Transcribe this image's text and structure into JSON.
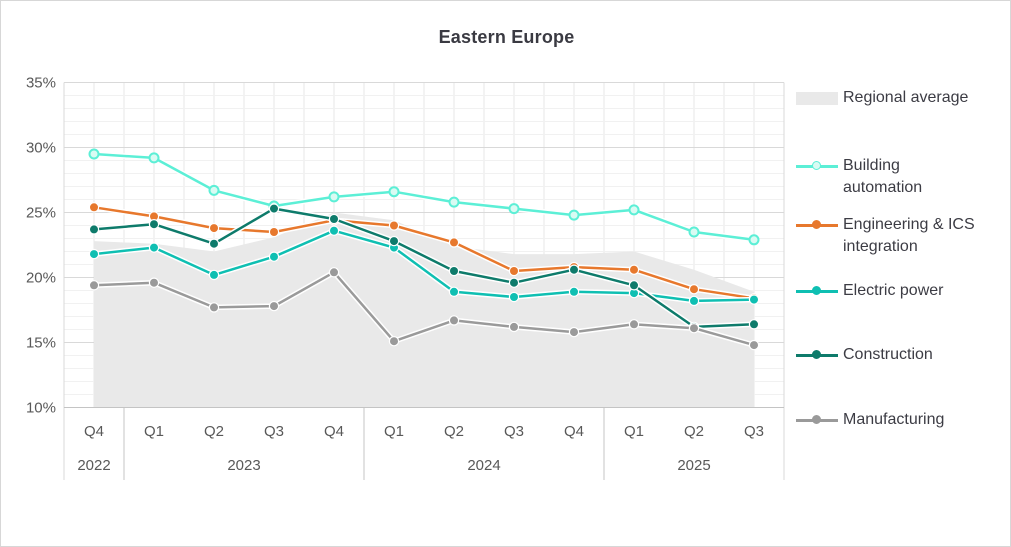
{
  "title": "Eastern Europe",
  "chart_data": {
    "type": "line",
    "title": "Eastern Europe",
    "x_categories": [
      "Q4",
      "Q1",
      "Q2",
      "Q3",
      "Q4",
      "Q1",
      "Q2",
      "Q3",
      "Q4",
      "Q1",
      "Q2",
      "Q3"
    ],
    "year_groups": [
      {
        "label": "2022",
        "quarters": 1
      },
      {
        "label": "2023",
        "quarters": 4
      },
      {
        "label": "2024",
        "quarters": 4
      },
      {
        "label": "2025",
        "quarters": 3
      }
    ],
    "y_axis": {
      "unit": "%",
      "min": 10,
      "max": 35,
      "major_step": 5,
      "minor_step": 1,
      "tick_labels": [
        "35%",
        "30%",
        "25%",
        "20%",
        "15%",
        "10%"
      ]
    },
    "grid": {
      "horizontal": true,
      "vertical": true
    },
    "area_series": {
      "name": "Regional average",
      "color": "#e9e9e9",
      "values": [
        22.8,
        22.6,
        22.0,
        23.1,
        25.0,
        24.4,
        22.4,
        21.8,
        21.8,
        22.0,
        20.6,
        18.9
      ]
    },
    "series": [
      {
        "name": "Building automation",
        "color": "#5cefd6",
        "marker": "open-circle",
        "values": [
          29.5,
          29.2,
          26.7,
          25.5,
          26.2,
          26.6,
          25.8,
          25.3,
          24.8,
          25.2,
          23.5,
          22.9
        ]
      },
      {
        "name": "Engineering & ICS integration",
        "color": "#e7782d",
        "marker": "dot",
        "values": [
          25.4,
          24.7,
          23.8,
          23.5,
          24.4,
          24.0,
          22.7,
          20.5,
          20.8,
          20.6,
          19.1,
          18.4
        ]
      },
      {
        "name": "Electric power",
        "color": "#0fbfb2",
        "marker": "dot",
        "values": [
          21.8,
          22.3,
          20.2,
          21.6,
          23.6,
          22.3,
          18.9,
          18.5,
          18.9,
          18.8,
          18.2,
          18.3
        ]
      },
      {
        "name": "Construction",
        "color": "#0e7b6b",
        "marker": "dot",
        "values": [
          23.7,
          24.1,
          22.6,
          25.3,
          24.5,
          22.8,
          20.5,
          19.6,
          20.6,
          19.4,
          16.2,
          16.4
        ]
      },
      {
        "name": "Manufacturing",
        "color": "#9a9a9a",
        "marker": "dot",
        "values": [
          19.4,
          19.6,
          17.7,
          17.8,
          20.4,
          15.1,
          16.7,
          16.2,
          15.8,
          16.4,
          16.1,
          14.8
        ]
      }
    ],
    "legend": {
      "position": "right",
      "items": [
        {
          "label": "Regional average",
          "lines": [
            "Regional average"
          ],
          "marker": "swatch",
          "color": "#e9e9e9"
        },
        {
          "label": "Building automation",
          "lines": [
            "Building",
            "automation"
          ],
          "marker": "open-circle",
          "color": "#5cefd6"
        },
        {
          "label": "Engineering & ICS integration",
          "lines": [
            "Engineering & ICS",
            "integration"
          ],
          "marker": "line-dot",
          "color": "#e7782d"
        },
        {
          "label": "Electric power",
          "lines": [
            "Electric power"
          ],
          "marker": "line-dot",
          "color": "#0fbfb2"
        },
        {
          "label": "Construction",
          "lines": [
            "Construction"
          ],
          "marker": "line-dot",
          "color": "#0e7b6b"
        },
        {
          "label": "Manufacturing",
          "lines": [
            "Manufacturing"
          ],
          "marker": "line-dot",
          "color": "#9a9a9a"
        }
      ]
    },
    "colors": {
      "text_dark": "#3c3c44",
      "axis_text": "#595959",
      "grid_major": "#d9d9d9",
      "grid_minor": "#f1f1f1",
      "grid_vertical": "#e7e7e7",
      "divider": "#c4c4c4"
    }
  }
}
